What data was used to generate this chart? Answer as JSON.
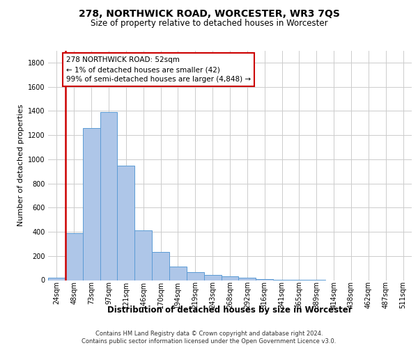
{
  "title": "278, NORTHWICK ROAD, WORCESTER, WR3 7QS",
  "subtitle": "Size of property relative to detached houses in Worcester",
  "xlabel": "Distribution of detached houses by size in Worcester",
  "ylabel": "Number of detached properties",
  "footnote1": "Contains HM Land Registry data © Crown copyright and database right 2024.",
  "footnote2": "Contains public sector information licensed under the Open Government Licence v3.0.",
  "annotation_title": "278 NORTHWICK ROAD: 52sqm",
  "annotation_line1": "← 1% of detached houses are smaller (42)",
  "annotation_line2": "99% of semi-detached houses are larger (4,848) →",
  "bar_categories": [
    "24sqm",
    "48sqm",
    "73sqm",
    "97sqm",
    "121sqm",
    "146sqm",
    "170sqm",
    "194sqm",
    "219sqm",
    "243sqm",
    "268sqm",
    "292sqm",
    "316sqm",
    "341sqm",
    "365sqm",
    "389sqm",
    "414sqm",
    "438sqm",
    "462sqm",
    "487sqm",
    "511sqm"
  ],
  "bar_values": [
    20,
    390,
    1260,
    1390,
    950,
    410,
    235,
    110,
    65,
    45,
    30,
    20,
    10,
    5,
    2,
    1,
    0,
    0,
    0,
    0,
    0
  ],
  "bar_color": "#aec6e8",
  "bar_edge_color": "#5b9bd5",
  "property_line_color": "#cc0000",
  "annotation_box_color": "#cc0000",
  "ylim": [
    0,
    1900
  ],
  "yticks": [
    0,
    200,
    400,
    600,
    800,
    1000,
    1200,
    1400,
    1600,
    1800
  ],
  "grid_color": "#cccccc",
  "background_color": "#ffffff",
  "title_fontsize": 10,
  "subtitle_fontsize": 8.5,
  "ylabel_fontsize": 8,
  "xlabel_fontsize": 8.5,
  "tick_fontsize": 7,
  "footnote_fontsize": 6,
  "annotation_fontsize": 7.5
}
